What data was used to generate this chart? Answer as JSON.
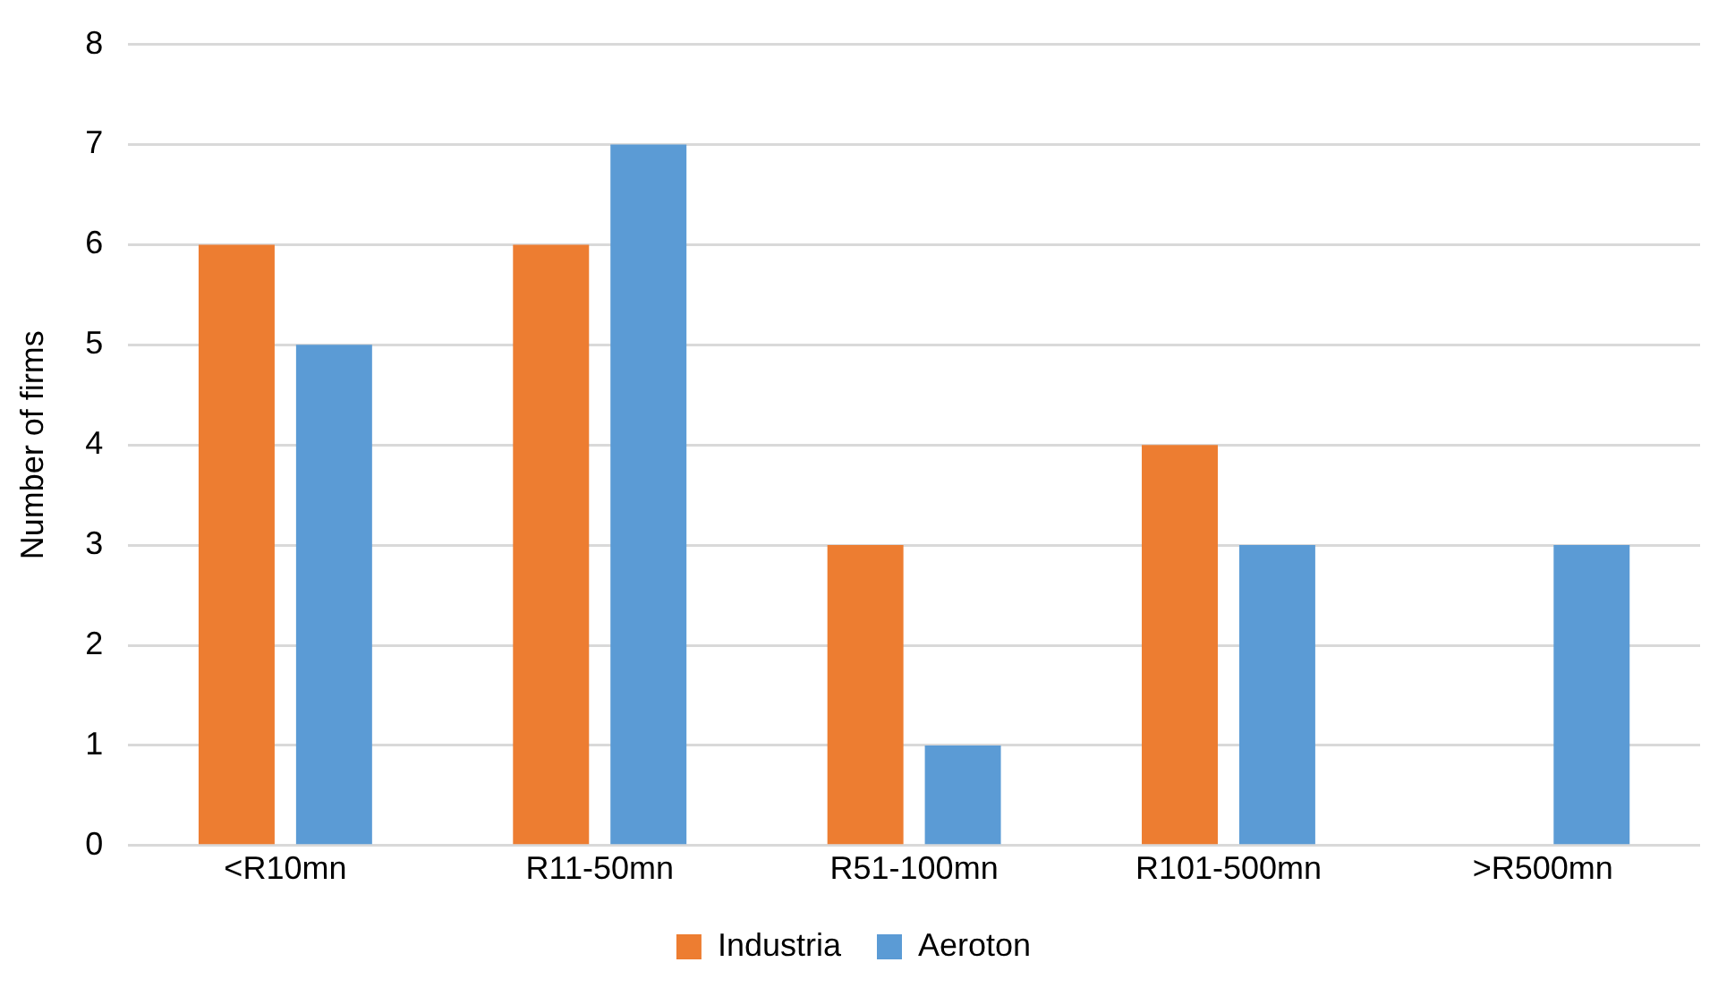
{
  "chart_data": {
    "type": "bar",
    "ylabel": "Number of firms",
    "categories": [
      "<R10mn",
      "R11-50mn",
      "R51-100mn",
      "R101-500mn",
      ">R500mn"
    ],
    "series": [
      {
        "name": "Industria",
        "color": "#ed7d31",
        "values": [
          6,
          6,
          3,
          4,
          0
        ]
      },
      {
        "name": "Aeroton",
        "color": "#5b9bd5",
        "values": [
          5,
          7,
          1,
          3,
          3
        ]
      }
    ],
    "ylim": [
      0,
      8
    ],
    "yticks": [
      0,
      1,
      2,
      3,
      4,
      5,
      6,
      7,
      8
    ],
    "grid": "y",
    "legend": "bottom"
  }
}
